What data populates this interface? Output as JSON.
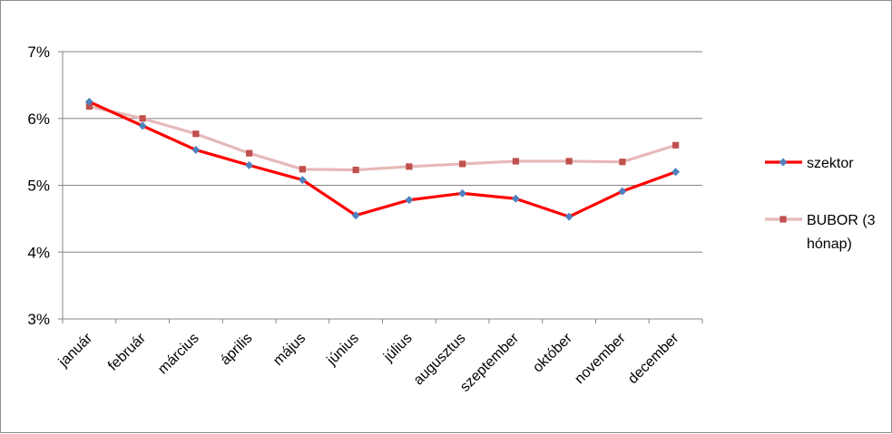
{
  "chart_data": {
    "type": "line",
    "categories": [
      "január",
      "február",
      "március",
      "április",
      "május",
      "június",
      "július",
      "augusztus",
      "szeptember",
      "október",
      "november",
      "december"
    ],
    "series": [
      {
        "name": "szektor",
        "color": "#ff0000",
        "marker_color": "#4f81bd",
        "marker": "diamond",
        "values": [
          6.25,
          5.89,
          5.53,
          5.3,
          5.08,
          4.55,
          4.78,
          4.88,
          4.8,
          4.53,
          4.91,
          5.2
        ]
      },
      {
        "name_lines": [
          "BUBOR (3",
          "hónap)"
        ],
        "color": "#e6b9b8",
        "marker_color": "#c0504d",
        "marker": "square",
        "values": [
          6.18,
          6.0,
          5.77,
          5.48,
          5.24,
          5.23,
          5.28,
          5.32,
          5.36,
          5.36,
          5.35,
          5.6
        ]
      }
    ],
    "y_ticks": [
      "3%",
      "4%",
      "5%",
      "6%",
      "7%"
    ],
    "ylim": [
      3,
      7
    ],
    "grid": true,
    "legend": "right"
  }
}
